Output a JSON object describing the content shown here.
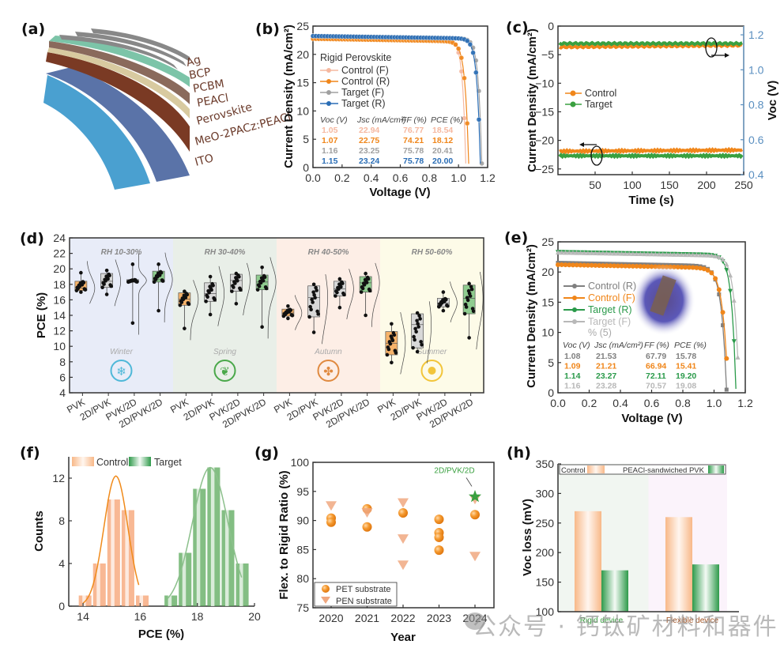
{
  "panels": {
    "a": {
      "label": "(a)",
      "layers": [
        "Ag",
        "BCP",
        "PCBM",
        "PEACl",
        "Perovskite",
        "MeO-2PACz:PEACl",
        "ITO"
      ]
    },
    "b": {
      "label": "(b)"
    },
    "c": {
      "label": "(c)"
    },
    "d": {
      "label": "(d)"
    },
    "e": {
      "label": "(e)"
    },
    "f": {
      "label": "(f)"
    },
    "g": {
      "label": "(g)"
    },
    "h": {
      "label": "(h)"
    }
  },
  "watermark": "公众号 · 钙钛矿材料和器件",
  "chart_data": [
    {
      "id": "b",
      "type": "line",
      "title": "Rigid Perovskite",
      "xlabel": "Voltage (V)",
      "ylabel": "Current Density (mA/cm²)",
      "xlim": [
        0,
        1.2
      ],
      "ylim": [
        0,
        25
      ],
      "xticks": [
        "0.0",
        "0.2",
        "0.4",
        "0.6",
        "0.8",
        "1.0",
        "1.2"
      ],
      "yticks": [
        "0",
        "5",
        "10",
        "15",
        "20",
        "25"
      ],
      "legend_title": "Rigid Perovskite",
      "series": [
        {
          "name": "Control (F)",
          "color": "#f5b8a0",
          "voc": 1.05,
          "jsc": 22.94,
          "ff": 76.77,
          "pce": 18.54
        },
        {
          "name": "Control (R)",
          "color": "#f0861a",
          "voc": 1.07,
          "jsc": 22.75,
          "ff": 74.21,
          "pce": 18.12
        },
        {
          "name": "Target (F)",
          "color": "#a0a0a0",
          "voc": 1.16,
          "jsc": 23.25,
          "ff": 75.78,
          "pce": 20.41
        },
        {
          "name": "Target (R)",
          "color": "#2a6db5",
          "voc": 1.15,
          "jsc": 23.24,
          "ff": 75.78,
          "pce": 20.0
        }
      ],
      "table_headers": [
        "Voc (V)",
        "Jsc (mA/cm²)",
        "FF (%)",
        "PCE (%)"
      ],
      "table_rows": [
        [
          "1.05",
          "22.94",
          "76.77",
          "18.54"
        ],
        [
          "1.07",
          "22.75",
          "74.21",
          "18.12"
        ],
        [
          "1.16",
          "23.25",
          "75.78",
          "20.41"
        ],
        [
          "1.15",
          "23.24",
          "75.78",
          "20.00"
        ]
      ]
    },
    {
      "id": "c",
      "type": "line",
      "xlabel": "Time (s)",
      "ylabel": "Current Density (mA/cm²)",
      "y2label": "Voc (V)",
      "xlim": [
        0,
        250
      ],
      "ylim": [
        -26,
        0
      ],
      "y2lim": [
        0.4,
        1.25
      ],
      "xticks": [
        "50",
        "100",
        "150",
        "200",
        "250"
      ],
      "yticks": [
        "0",
        "−5",
        "−10",
        "−15",
        "−20",
        "−25"
      ],
      "y2ticks": [
        "0.4",
        "0.6",
        "0.8",
        "1.0",
        "1.2"
      ],
      "series": [
        {
          "name": "Control",
          "color": "#f0861a",
          "current_density": -21.9,
          "voc": 1.13
        },
        {
          "name": "Target",
          "color": "#3aa040",
          "current_density": -22.7,
          "voc": 1.15
        }
      ]
    },
    {
      "id": "d",
      "type": "box",
      "ylabel": "PCE (%)",
      "ylim": [
        4,
        24
      ],
      "yticks": [
        "4",
        "6",
        "8",
        "10",
        "12",
        "14",
        "16",
        "18",
        "20",
        "22",
        "24"
      ],
      "categories": [
        "PVK",
        "2D/PVK",
        "PVK/2D",
        "2D/PVK/2D"
      ],
      "groups": [
        {
          "rh": "RH 10-30%",
          "season": "Winter",
          "bg": "#e8ecf8",
          "color": "#4fb8d8",
          "boxes": [
            [
              17.0,
              17.2,
              17.5,
              18.4,
              19.5
            ],
            [
              16.7,
              17.6,
              18.4,
              19.4,
              19.8
            ],
            [
              13.0,
              18.3,
              18.5,
              18.6,
              20.6
            ],
            [
              14.6,
              18.3,
              18.6,
              19.7,
              20.6
            ]
          ]
        },
        {
          "rh": "RH 30-40%",
          "season": "Spring",
          "bg": "#e9efe8",
          "color": "#4aa84a",
          "boxes": [
            [
              12.3,
              15.3,
              16.1,
              16.9,
              17.1
            ],
            [
              14.1,
              15.8,
              16.8,
              18.2,
              19.0
            ],
            [
              15.5,
              17.1,
              18.5,
              19.3,
              19.4
            ],
            [
              12.5,
              17.3,
              18.3,
              19.2,
              20.2
            ]
          ]
        },
        {
          "rh": "RH 40-50%",
          "season": "Autumn",
          "bg": "#fdeee6",
          "color": "#e08a40",
          "boxes": [
            [
              13.6,
              13.9,
              14.3,
              14.8,
              15.2
            ],
            [
              11.8,
              13.8,
              16.3,
              17.8,
              18.0
            ],
            [
              15.0,
              16.5,
              17.4,
              18.4,
              18.7
            ],
            [
              14.0,
              17.0,
              18.2,
              19.0,
              19.4
            ]
          ]
        },
        {
          "rh": "RH 50-60%",
          "season": "Summer",
          "bg": "#fdfbe8",
          "color": "#f2c53a",
          "boxes": [
            [
              7.9,
              8.9,
              10.4,
              11.9,
              12.9
            ],
            [
              9.3,
              9.8,
              12.8,
              14.2,
              14.3
            ],
            [
              14.6,
              15.1,
              15.6,
              16.2,
              17.0
            ],
            [
              11.1,
              14.2,
              16.2,
              17.9,
              18.1
            ]
          ]
        }
      ],
      "box_colors": [
        "#f6b36a",
        "#d8d8d8",
        "#d8d8d8",
        "#8fcc8f"
      ]
    },
    {
      "id": "e",
      "type": "line",
      "xlabel": "Voltage (V)",
      "ylabel": "Current Density (mA/cm²)",
      "xlim": [
        0,
        1.2
      ],
      "ylim": [
        0,
        25
      ],
      "xticks": [
        "0.0",
        "0.2",
        "0.4",
        "0.6",
        "0.8",
        "1.0",
        "1.2"
      ],
      "yticks": [
        "0",
        "5",
        "10",
        "15",
        "20",
        "25"
      ],
      "series": [
        {
          "name": "Control (R)",
          "color": "#808080",
          "marker": "square",
          "voc": 1.08,
          "jsc": 21.53,
          "ff": 67.79,
          "pce": 15.78
        },
        {
          "name": "Control (F)",
          "color": "#f0861a",
          "marker": "circle",
          "voc": 1.09,
          "jsc": 21.21,
          "ff": 66.94,
          "pce": 15.41
        },
        {
          "name": "Target (R)",
          "color": "#2a9a4a",
          "marker": "triangle-down",
          "voc": 1.14,
          "jsc": 23.27,
          "ff": 72.11,
          "pce": 19.2
        },
        {
          "name": "Target (F)",
          "color": "#b8b8b8",
          "marker": "triangle-up",
          "voc": 1.16,
          "jsc": 23.28,
          "ff": 70.57,
          "pce": 19.08
        }
      ],
      "legend_extra": "% (5)",
      "table_headers": [
        "Voc (V)",
        "Jsc (mA/cm²)",
        "FF (%)",
        "PCE (%)"
      ],
      "table_rows": [
        [
          "1.08",
          "21.53",
          "67.79",
          "15.78"
        ],
        [
          "1.09",
          "21.21",
          "66.94",
          "15.41"
        ],
        [
          "1.14",
          "23.27",
          "72.11",
          "19.20"
        ],
        [
          "1.16",
          "23.28",
          "70.57",
          "19.08"
        ]
      ]
    },
    {
      "id": "f",
      "type": "bar",
      "xlabel": "PCE (%)",
      "ylabel": "Counts",
      "xlim": [
        13.5,
        20
      ],
      "ylim": [
        0,
        14
      ],
      "xticks": [
        "14",
        "16",
        "18",
        "20"
      ],
      "yticks": [
        "0",
        "4",
        "8",
        "12"
      ],
      "series": [
        {
          "name": "Control",
          "color": "#f5a070",
          "x": [
            14.0,
            14.5,
            15.0,
            15.5,
            16.0
          ],
          "values": [
            1,
            4,
            10,
            9,
            1
          ],
          "fit_peak": 12.2,
          "fit_center": 15.15
        },
        {
          "name": "Target",
          "color": "#5aa85a",
          "x": [
            17.0,
            17.5,
            18.0,
            18.5,
            19.0,
            19.5
          ],
          "values": [
            1,
            5,
            11,
            13,
            9,
            4
          ],
          "fit_peak": 13.0,
          "fit_center": 18.45
        }
      ]
    },
    {
      "id": "g",
      "type": "scatter",
      "xlabel": "Year",
      "ylabel": "Flex. to Rigid Ratio (%)",
      "ylim": [
        75,
        100
      ],
      "categories": [
        "2020",
        "2021",
        "2022",
        "2023",
        "2024"
      ],
      "yticks": [
        "75",
        "80",
        "85",
        "90",
        "95",
        "100"
      ],
      "series": [
        {
          "name": "PET substrate",
          "color": "#f08a20",
          "marker": "circle",
          "points": [
            [
              "2020",
              90.4
            ],
            [
              "2020",
              89.7
            ],
            [
              "2021",
              92.0
            ],
            [
              "2021",
              88.9
            ],
            [
              "2022",
              91.3
            ],
            [
              "2023",
              90.2
            ],
            [
              "2023",
              87.9
            ],
            [
              "2023",
              87.1
            ],
            [
              "2023",
              84.9
            ],
            [
              "2024",
              91.0
            ]
          ]
        },
        {
          "name": "PEN substrate",
          "color": "#f0a880",
          "marker": "triangle-down",
          "points": [
            [
              "2020",
              92.5
            ],
            [
              "2021",
              91.3
            ],
            [
              "2022",
              93.0
            ],
            [
              "2022",
              86.8
            ],
            [
              "2022",
              82.3
            ],
            [
              "2024",
              83.8
            ],
            [
              "2024",
              93.6
            ]
          ]
        }
      ],
      "annotation": {
        "text": "2D/PVK/2D",
        "x": "2024",
        "y": 94.1,
        "color": "#3aa040",
        "marker": "star"
      }
    },
    {
      "id": "h",
      "type": "bar",
      "ylabel": "Voc loss (mV)",
      "ylim": [
        100,
        350
      ],
      "yticks": [
        "100",
        "150",
        "200",
        "250",
        "300",
        "350"
      ],
      "categories": [
        "Rigid device",
        "Flexible device"
      ],
      "category_colors": [
        "#3aa040",
        "#a05020"
      ],
      "series": [
        {
          "name": "Control",
          "color": "#f8b888",
          "values": [
            270,
            260
          ]
        },
        {
          "name": "PEACl-sandwiched PVK",
          "color": "#2e9a4a",
          "values": [
            170,
            180
          ]
        }
      ]
    }
  ]
}
